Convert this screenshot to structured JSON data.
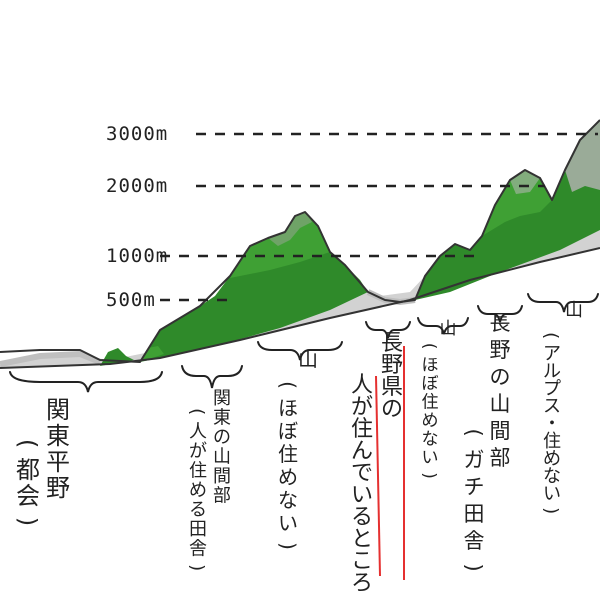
{
  "altitudes": [
    {
      "label": "3000m"
    },
    {
      "label": "2000m"
    },
    {
      "label": "1000m"
    },
    {
      "label": "500m"
    }
  ],
  "regions": [
    {
      "id": "kanto-plain",
      "lines": [
        "関東平野",
        "(都会)"
      ]
    },
    {
      "id": "kanto-mountains",
      "lines": [
        "関東の山間部",
        "(人が住める田舎)"
      ]
    },
    {
      "id": "mountain-uninhabited-1",
      "lines": [
        "山",
        "(ほぼ住めない)"
      ]
    },
    {
      "id": "nagano-valley",
      "lines": [
        "長野県の",
        "人が住んでいるところ"
      ]
    },
    {
      "id": "mountain-uninhabited-2",
      "lines": [
        "山",
        "(ほぼ住めない)"
      ]
    },
    {
      "id": "nagano-mountains",
      "lines": [
        "長野の山間部",
        "(ガチ田舎)"
      ]
    },
    {
      "id": "alps",
      "lines": [
        "山",
        "(アルプス・住めない)"
      ]
    }
  ],
  "colors": {
    "mountain_dark": "#2f8a2a",
    "mountain_mid": "#3fa034",
    "mountain_light": "#58b54a",
    "valley_grey": "#c9c9c9",
    "rock_grey": "#a7aba6",
    "ink": "#222222",
    "highlight_red": "#e53030"
  }
}
